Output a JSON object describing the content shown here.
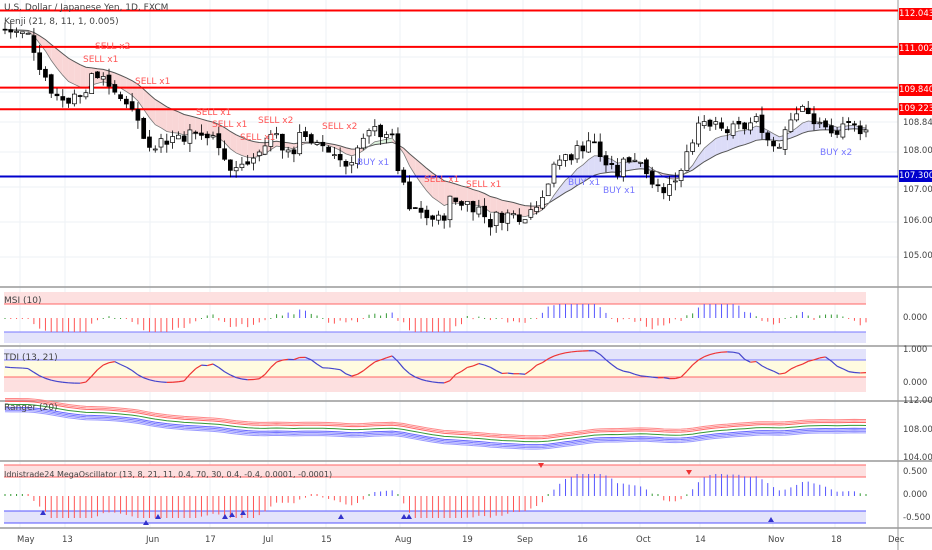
{
  "header": {
    "symbol_title": "U.S. Dollar / Japanese Yen, 1D, FXCM",
    "indicator_main": "Kenji (21, 8, 11, 1, 0.005)"
  },
  "panes": {
    "msi": "MSI (10)",
    "tdi": "TDI (13, 21)",
    "ranger": "Ranger (20)",
    "mega": "Idnistrade24 MegaOscillator (13, 8, 21, 11, 0.4, 70, 30, 0.4, -0.4, 0.0001, -0.0001)"
  },
  "price_axis": {
    "ticks": [
      "108.000",
      "107.000",
      "106.000",
      "105.000"
    ],
    "current_price": "108.844",
    "levels": [
      {
        "value": "112.043",
        "color": "#ff0000"
      },
      {
        "value": "111.002",
        "color": "#ff0000"
      },
      {
        "value": "109.840",
        "color": "#ff0000"
      },
      {
        "value": "109.223",
        "color": "#ff0000"
      },
      {
        "value": "107.300",
        "color": "#0000cc"
      }
    ]
  },
  "msi_axis": [
    "0.000"
  ],
  "tdi_axis": [
    "1.000",
    "0.000"
  ],
  "ranger_axis": [
    "112.000",
    "108.000",
    "104.000"
  ],
  "mega_axis": [
    "0.500",
    "0.000",
    "-0.500"
  ],
  "date_axis": [
    "May",
    "13",
    "Jun",
    "17",
    "Jul",
    "15",
    "Aug",
    "19",
    "Sep",
    "16",
    "Oct",
    "14",
    "Nov",
    "18",
    "Dec"
  ],
  "signals": [
    {
      "label": "SELL x2",
      "type": "sell"
    },
    {
      "label": "SELL x1",
      "type": "sell"
    },
    {
      "label": "SELL x1",
      "type": "sell"
    },
    {
      "label": "SELL x1",
      "type": "sell"
    },
    {
      "label": "SELL x1",
      "type": "sell"
    },
    {
      "label": "SELL x2",
      "type": "sell"
    },
    {
      "label": "SELL x1",
      "type": "sell"
    },
    {
      "label": "SELL x2",
      "type": "sell"
    },
    {
      "label": "BUY x1",
      "type": "buy"
    },
    {
      "label": "SELL x1",
      "type": "sell"
    },
    {
      "label": "SELL x1",
      "type": "sell"
    },
    {
      "label": "BUY x1",
      "type": "buy"
    },
    {
      "label": "BUY x1",
      "type": "buy"
    },
    {
      "label": "BUY x2",
      "type": "buy"
    }
  ],
  "chart_data": {
    "type": "candlestick",
    "closes_approx": [
      111.5,
      111.3,
      110.5,
      109.6,
      109.5,
      110.0,
      110.3,
      109.5,
      109.5,
      108.3,
      108.3,
      108.5,
      108.5,
      108.3,
      107.5,
      107.6,
      108.0,
      108.6,
      107.9,
      108.6,
      108.0,
      108.0,
      107.6,
      108.2,
      108.6,
      108.6,
      107.3,
      106.3,
      106.2,
      106.0,
      106.6,
      106.6,
      106.5,
      106.0,
      106.2,
      106.2,
      106.3,
      107.0,
      107.8,
      108.0,
      108.4,
      107.9,
      107.3,
      107.9,
      107.7,
      107.0,
      107.0,
      107.5,
      108.4,
      108.8,
      108.6,
      108.6,
      108.8,
      108.9,
      108.2,
      108.3,
      109.1,
      109.2,
      108.9,
      108.5,
      108.6,
      108.7,
      108.8
    ],
    "colors": {
      "up": "#ffffff",
      "down": "#000000",
      "sell": "#ff5555",
      "buy": "#7777ff"
    }
  }
}
